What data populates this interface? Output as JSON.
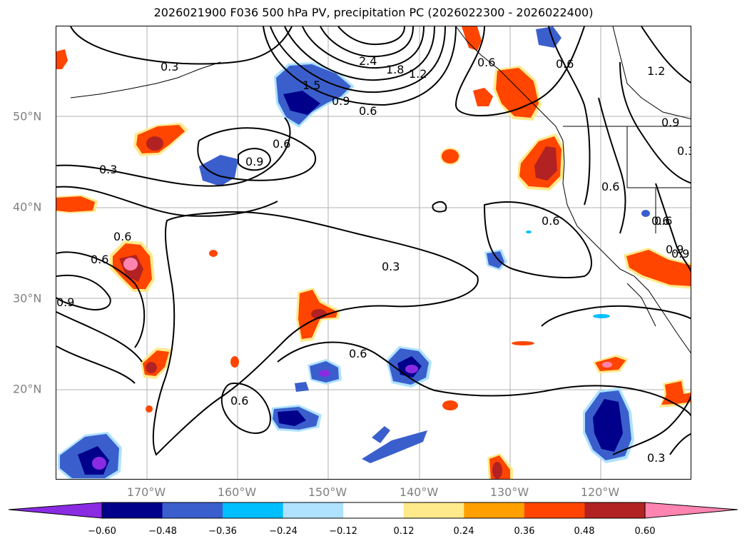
{
  "title": "2026021900 F036 500 hPa PV, precipitation PC (2026022300 - 2026022400)",
  "lat_labels": [
    "50°N",
    "40°N",
    "30°N",
    "20°N"
  ],
  "lon_labels": [
    "170°W",
    "160°W",
    "150°W",
    "140°W",
    "130°W",
    "120°W"
  ],
  "colorbar": {
    "ticks": [
      "−0.60",
      "−0.48",
      "−0.36",
      "−0.24",
      "−0.12",
      "0.12",
      "0.24",
      "0.36",
      "0.48",
      "0.60"
    ],
    "colors": [
      "#8a2be2",
      "#00008b",
      "#3a5fcd",
      "#00bfff",
      "#aee2ff",
      "#ffffff",
      "#ffe98a",
      "#ffa000",
      "#ff4500",
      "#b22222",
      "#ff85b0"
    ]
  },
  "contour_labels": [
    "0.3",
    "0.3",
    "0.6",
    "0.9",
    "0.6",
    "0.9",
    "1.2",
    "1.8",
    "2.4",
    "1.5",
    "0.6",
    "0.6",
    "0.9",
    "1.2",
    "0.9",
    "0.3",
    "0.6",
    "0.6",
    "0.9",
    "0.6",
    "0.6",
    "0.3",
    "0.6",
    "0.9",
    "0.6",
    "0.6",
    "0.6",
    "0.3"
  ]
}
